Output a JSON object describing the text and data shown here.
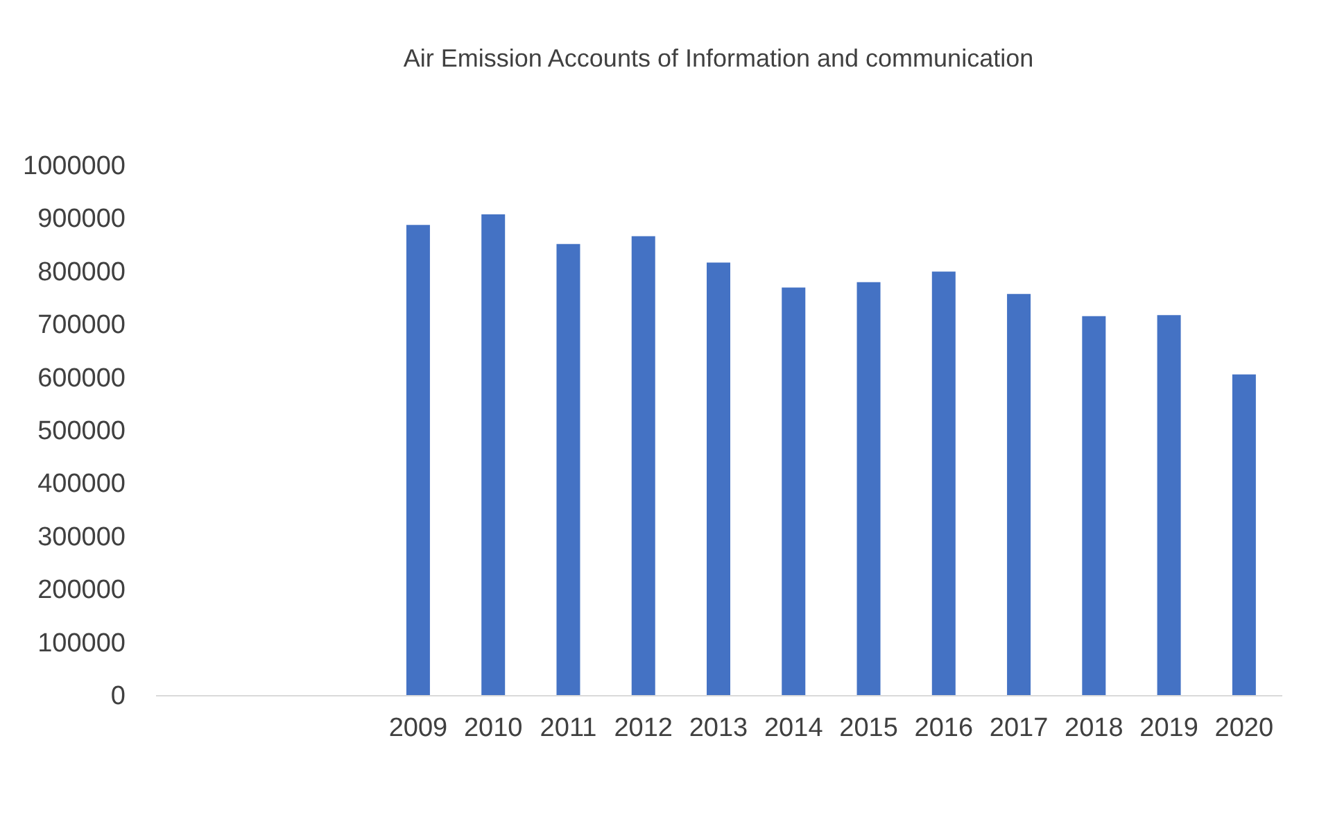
{
  "chart_data": {
    "type": "bar",
    "title": "Air Emission Accounts of Information and communication",
    "categories": [
      null,
      null,
      null,
      "2009",
      "2010",
      "2011",
      "2012",
      "2013",
      "2014",
      "2015",
      "2016",
      "2017",
      "2018",
      "2019",
      "2020"
    ],
    "values": [
      null,
      null,
      null,
      887000,
      907000,
      851000,
      866000,
      816000,
      769000,
      779000,
      799000,
      757000,
      715000,
      717000,
      605000
    ],
    "color": "#4472c4",
    "ylim": [
      0,
      1000000
    ],
    "yticks": [
      0,
      100000,
      200000,
      300000,
      400000,
      500000,
      600000,
      700000,
      800000,
      900000,
      1000000
    ],
    "grid": false
  }
}
